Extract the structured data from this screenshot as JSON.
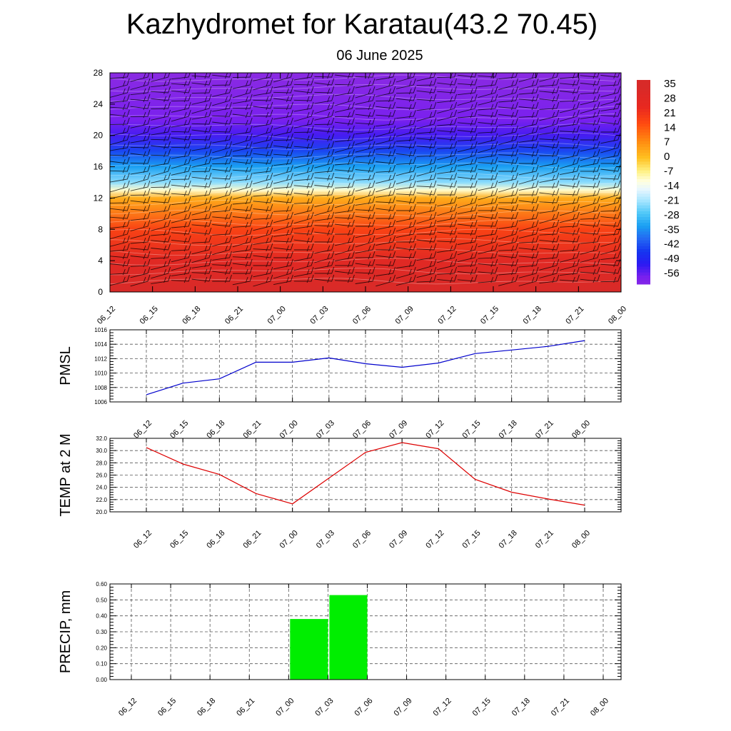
{
  "title": "Kazhydromet for Karatau(43.2 70.45)",
  "subtitle": "06 June 2025",
  "time_labels": [
    "06_12",
    "06_15",
    "06_18",
    "06_21",
    "07_00",
    "07_03",
    "07_06",
    "07_09",
    "07_12",
    "07_15",
    "07_18",
    "07_21",
    "08_00"
  ],
  "chart_data": [
    {
      "type": "heatmap",
      "title": "",
      "ylabel": "",
      "yticks": [
        "0",
        "4",
        "8",
        "12",
        "16",
        "20",
        "24",
        "28"
      ],
      "ylim": [
        0,
        28
      ],
      "colorbar": {
        "labels": [
          "35",
          "28",
          "21",
          "14",
          "7",
          "0",
          "-7",
          "-14",
          "-21",
          "-28",
          "-35",
          "-42",
          "-49",
          "-56"
        ],
        "colors": [
          "#f7b0b0",
          "#e8262a",
          "#ff5a10",
          "#ff9f1c",
          "#ffd040",
          "#fff7a0",
          "#ffffd8",
          "#b9ecff",
          "#4fc2f5",
          "#1fa0ef",
          "#2a6ff0",
          "#1a1aef",
          "#5a16f0",
          "#9b3cf5"
        ]
      },
      "levels": [
        0,
        4,
        8,
        12,
        13,
        14,
        16,
        18,
        20,
        22,
        24,
        26,
        28
      ],
      "level_temps": [
        33,
        28,
        18,
        3,
        -10,
        -22,
        -32,
        -42,
        -52,
        -56,
        -58,
        -60,
        -62
      ],
      "winds": "wind-barbs"
    },
    {
      "type": "line",
      "ylabel": "PMSL",
      "ylim": [
        1006,
        1016
      ],
      "yticks": [
        "1006",
        "1008",
        "1010",
        "1012",
        "1014",
        "1016"
      ],
      "color": "#0000cc",
      "values": [
        1007.0,
        1008.6,
        1009.2,
        1011.5,
        1011.5,
        1012.1,
        1011.3,
        1010.8,
        1011.4,
        1012.7,
        1013.2,
        1013.7,
        1014.5
      ]
    },
    {
      "type": "line",
      "ylabel": "TEMP at 2 M",
      "ylim": [
        20,
        32
      ],
      "yticks": [
        "20.0",
        "22.0",
        "24.0",
        "26.0",
        "28.0",
        "30.0",
        "32.0"
      ],
      "color": "#dd0000",
      "values": [
        30.5,
        27.8,
        26.1,
        23.0,
        21.3,
        25.5,
        29.7,
        31.3,
        30.3,
        25.3,
        23.2,
        22.1,
        21.1
      ]
    },
    {
      "type": "bar",
      "ylabel": "PRECIP, mm",
      "ylim": [
        0,
        0.6
      ],
      "yticks": [
        "0.00",
        "0.10",
        "0.20",
        "0.30",
        "0.40",
        "0.50",
        "0.60"
      ],
      "color": "#00ee00",
      "values": [
        0,
        0,
        0,
        0,
        0,
        0.38,
        0.53,
        0,
        0,
        0,
        0,
        0,
        0
      ]
    }
  ]
}
